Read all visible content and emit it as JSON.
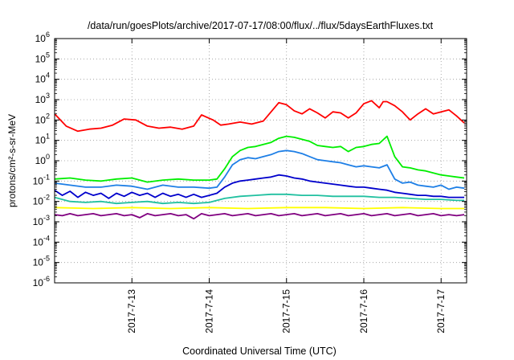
{
  "chart_data": {
    "type": "line",
    "title": "/data/run/goesPlots/archive/2017-07-17/08:00/flux/../flux/5daysEarthFluxes.txt",
    "xlabel": "Coordinated Universal Time (UTC)",
    "ylabel": "protons/cm²-s-sr-MeV",
    "x_tick_labels": [
      "2017-7-13",
      "2017-7-14",
      "2017-7-15",
      "2017-7-16",
      "2017-7-17"
    ],
    "x_ticks": [
      1.0,
      2.0,
      3.0,
      4.0,
      5.0
    ],
    "xlim": [
      0.0,
      5.33
    ],
    "x_origin": "2017-7-12 00:00",
    "y_scale": "log",
    "ylim_exp": [
      -6,
      6
    ],
    "y_tick_labels": [
      {
        "base": "10",
        "exp": "-6"
      },
      {
        "base": "10",
        "exp": "-5"
      },
      {
        "base": "10",
        "exp": "-4"
      },
      {
        "base": "10",
        "exp": "-3"
      },
      {
        "base": "10",
        "exp": "-2"
      },
      {
        "base": "10",
        "exp": "-1"
      },
      {
        "base": "10",
        "exp": "0"
      },
      {
        "base": "10",
        "exp": "1"
      },
      {
        "base": "10",
        "exp": "2"
      },
      {
        "base": "10",
        "exp": "3"
      },
      {
        "base": "10",
        "exp": "4"
      },
      {
        "base": "10",
        "exp": "5"
      },
      {
        "base": "10",
        "exp": "6"
      }
    ],
    "grid": true,
    "series": [
      {
        "color": "#ff0000",
        "log10_values": [
          [
            0.0,
            2.3
          ],
          [
            0.05,
            2.1
          ],
          [
            0.15,
            1.7
          ],
          [
            0.3,
            1.45
          ],
          [
            0.45,
            1.55
          ],
          [
            0.6,
            1.6
          ],
          [
            0.75,
            1.75
          ],
          [
            0.9,
            2.05
          ],
          [
            1.05,
            2.0
          ],
          [
            1.2,
            1.7
          ],
          [
            1.35,
            1.6
          ],
          [
            1.5,
            1.65
          ],
          [
            1.65,
            1.55
          ],
          [
            1.8,
            1.7
          ],
          [
            1.9,
            2.25
          ],
          [
            2.05,
            2.0
          ],
          [
            2.15,
            1.75
          ],
          [
            2.25,
            1.8
          ],
          [
            2.4,
            1.9
          ],
          [
            2.55,
            1.8
          ],
          [
            2.7,
            1.95
          ],
          [
            2.8,
            2.4
          ],
          [
            2.9,
            2.85
          ],
          [
            3.0,
            2.75
          ],
          [
            3.1,
            2.45
          ],
          [
            3.2,
            2.3
          ],
          [
            3.3,
            2.55
          ],
          [
            3.4,
            2.35
          ],
          [
            3.5,
            2.1
          ],
          [
            3.6,
            2.4
          ],
          [
            3.7,
            2.35
          ],
          [
            3.8,
            2.1
          ],
          [
            3.9,
            2.35
          ],
          [
            4.0,
            2.8
          ],
          [
            4.1,
            2.95
          ],
          [
            4.2,
            2.6
          ],
          [
            4.25,
            2.9
          ],
          [
            4.3,
            2.9
          ],
          [
            4.4,
            2.7
          ],
          [
            4.5,
            2.4
          ],
          [
            4.6,
            2.0
          ],
          [
            4.7,
            2.3
          ],
          [
            4.8,
            2.55
          ],
          [
            4.9,
            2.3
          ],
          [
            5.0,
            2.4
          ],
          [
            5.1,
            2.5
          ],
          [
            5.2,
            2.2
          ],
          [
            5.3,
            1.85
          ]
        ]
      },
      {
        "color": "#00ee00",
        "log10_values": [
          [
            0.0,
            -0.9
          ],
          [
            0.2,
            -0.85
          ],
          [
            0.4,
            -0.95
          ],
          [
            0.6,
            -1.0
          ],
          [
            0.8,
            -0.9
          ],
          [
            1.0,
            -0.85
          ],
          [
            1.2,
            -1.05
          ],
          [
            1.4,
            -0.95
          ],
          [
            1.6,
            -0.9
          ],
          [
            1.8,
            -0.95
          ],
          [
            2.0,
            -0.95
          ],
          [
            2.1,
            -0.9
          ],
          [
            2.2,
            -0.4
          ],
          [
            2.3,
            0.2
          ],
          [
            2.4,
            0.5
          ],
          [
            2.5,
            0.65
          ],
          [
            2.6,
            0.7
          ],
          [
            2.7,
            0.8
          ],
          [
            2.8,
            0.9
          ],
          [
            2.9,
            1.1
          ],
          [
            3.0,
            1.2
          ],
          [
            3.1,
            1.15
          ],
          [
            3.2,
            1.05
          ],
          [
            3.3,
            0.95
          ],
          [
            3.4,
            0.75
          ],
          [
            3.5,
            0.7
          ],
          [
            3.6,
            0.65
          ],
          [
            3.7,
            0.7
          ],
          [
            3.8,
            0.45
          ],
          [
            3.9,
            0.65
          ],
          [
            4.0,
            0.7
          ],
          [
            4.1,
            0.8
          ],
          [
            4.2,
            0.85
          ],
          [
            4.3,
            1.2
          ],
          [
            4.4,
            0.2
          ],
          [
            4.5,
            -0.3
          ],
          [
            4.6,
            -0.35
          ],
          [
            4.7,
            -0.45
          ],
          [
            4.8,
            -0.5
          ],
          [
            4.9,
            -0.6
          ],
          [
            5.0,
            -0.7
          ],
          [
            5.1,
            -0.75
          ],
          [
            5.2,
            -0.8
          ],
          [
            5.3,
            -0.85
          ]
        ]
      },
      {
        "color": "#1e7fe6",
        "log10_values": [
          [
            0.0,
            -1.1
          ],
          [
            0.2,
            -1.2
          ],
          [
            0.4,
            -1.3
          ],
          [
            0.6,
            -1.3
          ],
          [
            0.8,
            -1.2
          ],
          [
            1.0,
            -1.25
          ],
          [
            1.2,
            -1.4
          ],
          [
            1.4,
            -1.2
          ],
          [
            1.6,
            -1.3
          ],
          [
            1.8,
            -1.3
          ],
          [
            2.0,
            -1.35
          ],
          [
            2.1,
            -1.3
          ],
          [
            2.2,
            -0.8
          ],
          [
            2.3,
            -0.2
          ],
          [
            2.4,
            0.05
          ],
          [
            2.5,
            0.15
          ],
          [
            2.6,
            0.1
          ],
          [
            2.7,
            0.2
          ],
          [
            2.8,
            0.3
          ],
          [
            2.9,
            0.45
          ],
          [
            3.0,
            0.5
          ],
          [
            3.1,
            0.45
          ],
          [
            3.2,
            0.35
          ],
          [
            3.3,
            0.2
          ],
          [
            3.4,
            0.05
          ],
          [
            3.5,
            0.0
          ],
          [
            3.6,
            -0.05
          ],
          [
            3.7,
            -0.1
          ],
          [
            3.8,
            -0.2
          ],
          [
            3.9,
            -0.3
          ],
          [
            4.0,
            -0.25
          ],
          [
            4.1,
            -0.3
          ],
          [
            4.2,
            -0.35
          ],
          [
            4.3,
            -0.2
          ],
          [
            4.4,
            -0.9
          ],
          [
            4.5,
            -1.1
          ],
          [
            4.6,
            -1.05
          ],
          [
            4.7,
            -1.2
          ],
          [
            4.8,
            -1.25
          ],
          [
            4.9,
            -1.3
          ],
          [
            5.0,
            -1.2
          ],
          [
            5.1,
            -1.4
          ],
          [
            5.2,
            -1.3
          ],
          [
            5.3,
            -1.35
          ]
        ]
      },
      {
        "color": "#0000cc",
        "log10_values": [
          [
            0.0,
            -1.45
          ],
          [
            0.1,
            -1.7
          ],
          [
            0.2,
            -1.5
          ],
          [
            0.3,
            -1.8
          ],
          [
            0.4,
            -1.55
          ],
          [
            0.5,
            -1.7
          ],
          [
            0.6,
            -1.6
          ],
          [
            0.7,
            -1.85
          ],
          [
            0.8,
            -1.6
          ],
          [
            0.9,
            -1.75
          ],
          [
            1.0,
            -1.55
          ],
          [
            1.1,
            -1.7
          ],
          [
            1.2,
            -1.6
          ],
          [
            1.3,
            -1.8
          ],
          [
            1.4,
            -1.6
          ],
          [
            1.5,
            -1.75
          ],
          [
            1.6,
            -1.65
          ],
          [
            1.7,
            -1.8
          ],
          [
            1.8,
            -1.65
          ],
          [
            1.9,
            -1.8
          ],
          [
            2.0,
            -1.7
          ],
          [
            2.1,
            -1.6
          ],
          [
            2.2,
            -1.3
          ],
          [
            2.3,
            -1.1
          ],
          [
            2.4,
            -1.0
          ],
          [
            2.5,
            -0.95
          ],
          [
            2.6,
            -0.9
          ],
          [
            2.7,
            -0.85
          ],
          [
            2.8,
            -0.8
          ],
          [
            2.9,
            -0.7
          ],
          [
            3.0,
            -0.75
          ],
          [
            3.1,
            -0.85
          ],
          [
            3.2,
            -0.9
          ],
          [
            3.3,
            -1.0
          ],
          [
            3.4,
            -1.05
          ],
          [
            3.5,
            -1.1
          ],
          [
            3.6,
            -1.15
          ],
          [
            3.7,
            -1.2
          ],
          [
            3.8,
            -1.25
          ],
          [
            3.9,
            -1.3
          ],
          [
            4.0,
            -1.3
          ],
          [
            4.1,
            -1.35
          ],
          [
            4.2,
            -1.4
          ],
          [
            4.3,
            -1.45
          ],
          [
            4.4,
            -1.55
          ],
          [
            4.5,
            -1.6
          ],
          [
            4.6,
            -1.65
          ],
          [
            4.7,
            -1.7
          ],
          [
            4.8,
            -1.7
          ],
          [
            4.9,
            -1.75
          ],
          [
            5.0,
            -1.75
          ],
          [
            5.1,
            -1.8
          ],
          [
            5.2,
            -1.8
          ],
          [
            5.3,
            -1.8
          ]
        ]
      },
      {
        "color": "#20c0a0",
        "log10_values": [
          [
            0.0,
            -1.8
          ],
          [
            0.2,
            -2.0
          ],
          [
            0.4,
            -2.05
          ],
          [
            0.6,
            -2.0
          ],
          [
            0.8,
            -2.1
          ],
          [
            1.0,
            -2.05
          ],
          [
            1.2,
            -2.0
          ],
          [
            1.4,
            -2.1
          ],
          [
            1.6,
            -2.05
          ],
          [
            1.8,
            -2.1
          ],
          [
            2.0,
            -2.05
          ],
          [
            2.2,
            -1.85
          ],
          [
            2.4,
            -1.75
          ],
          [
            2.6,
            -1.7
          ],
          [
            2.8,
            -1.65
          ],
          [
            3.0,
            -1.65
          ],
          [
            3.2,
            -1.7
          ],
          [
            3.4,
            -1.7
          ],
          [
            3.6,
            -1.75
          ],
          [
            3.8,
            -1.75
          ],
          [
            4.0,
            -1.75
          ],
          [
            4.2,
            -1.8
          ],
          [
            4.4,
            -1.8
          ],
          [
            4.6,
            -1.85
          ],
          [
            4.8,
            -1.9
          ],
          [
            5.0,
            -1.9
          ],
          [
            5.2,
            -1.95
          ],
          [
            5.3,
            -1.95
          ]
        ]
      },
      {
        "color": "#ffff00",
        "log10_values": [
          [
            0.0,
            -2.3
          ],
          [
            0.5,
            -2.35
          ],
          [
            1.0,
            -2.3
          ],
          [
            1.5,
            -2.35
          ],
          [
            2.0,
            -2.3
          ],
          [
            2.5,
            -2.35
          ],
          [
            3.0,
            -2.3
          ],
          [
            3.5,
            -2.3
          ],
          [
            4.0,
            -2.35
          ],
          [
            4.5,
            -2.3
          ],
          [
            5.0,
            -2.35
          ],
          [
            5.3,
            -2.35
          ]
        ]
      },
      {
        "color": "#800080",
        "log10_values": [
          [
            0.0,
            -2.65
          ],
          [
            0.1,
            -2.7
          ],
          [
            0.2,
            -2.6
          ],
          [
            0.3,
            -2.7
          ],
          [
            0.4,
            -2.65
          ],
          [
            0.5,
            -2.6
          ],
          [
            0.6,
            -2.7
          ],
          [
            0.7,
            -2.65
          ],
          [
            0.8,
            -2.6
          ],
          [
            0.9,
            -2.7
          ],
          [
            1.0,
            -2.65
          ],
          [
            1.1,
            -2.8
          ],
          [
            1.2,
            -2.6
          ],
          [
            1.3,
            -2.7
          ],
          [
            1.4,
            -2.65
          ],
          [
            1.5,
            -2.6
          ],
          [
            1.6,
            -2.7
          ],
          [
            1.7,
            -2.65
          ],
          [
            1.8,
            -2.85
          ],
          [
            1.9,
            -2.6
          ],
          [
            2.0,
            -2.7
          ],
          [
            2.1,
            -2.65
          ],
          [
            2.2,
            -2.6
          ],
          [
            2.3,
            -2.7
          ],
          [
            2.4,
            -2.65
          ],
          [
            2.5,
            -2.6
          ],
          [
            2.6,
            -2.7
          ],
          [
            2.7,
            -2.65
          ],
          [
            2.8,
            -2.6
          ],
          [
            2.9,
            -2.7
          ],
          [
            3.0,
            -2.65
          ],
          [
            3.1,
            -2.6
          ],
          [
            3.2,
            -2.7
          ],
          [
            3.3,
            -2.65
          ],
          [
            3.4,
            -2.6
          ],
          [
            3.5,
            -2.7
          ],
          [
            3.6,
            -2.65
          ],
          [
            3.7,
            -2.6
          ],
          [
            3.8,
            -2.7
          ],
          [
            3.9,
            -2.65
          ],
          [
            4.0,
            -2.6
          ],
          [
            4.1,
            -2.7
          ],
          [
            4.2,
            -2.65
          ],
          [
            4.3,
            -2.6
          ],
          [
            4.4,
            -2.7
          ],
          [
            4.5,
            -2.65
          ],
          [
            4.6,
            -2.6
          ],
          [
            4.7,
            -2.7
          ],
          [
            4.8,
            -2.65
          ],
          [
            4.9,
            -2.6
          ],
          [
            5.0,
            -2.7
          ],
          [
            5.1,
            -2.65
          ],
          [
            5.2,
            -2.7
          ],
          [
            5.3,
            -2.65
          ]
        ]
      }
    ]
  }
}
